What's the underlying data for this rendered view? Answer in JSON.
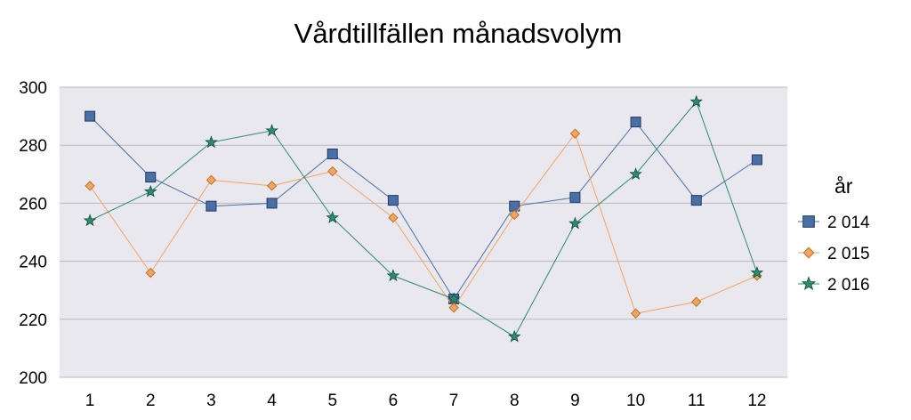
{
  "chart_data": {
    "type": "line",
    "title": "Vårdtillfällen månadsvolym",
    "xlabel": "",
    "ylabel": "",
    "categories": [
      "1",
      "2",
      "3",
      "4",
      "5",
      "6",
      "7",
      "8",
      "9",
      "10",
      "11",
      "12"
    ],
    "ylim": [
      200,
      300
    ],
    "yticks": [
      200,
      220,
      240,
      260,
      280,
      300
    ],
    "grid": true,
    "legend_title": "år",
    "legend_position": "right",
    "series": [
      {
        "name": "2 014",
        "marker": "square",
        "color": "#4A6FA5",
        "values": [
          290,
          269,
          259,
          260,
          277,
          261,
          227,
          259,
          262,
          288,
          261,
          275
        ]
      },
      {
        "name": "2 015",
        "marker": "diamond",
        "color": "#F4A460",
        "values": [
          266,
          236,
          268,
          266,
          271,
          255,
          224,
          256,
          284,
          222,
          226,
          235
        ]
      },
      {
        "name": "2 016",
        "marker": "star",
        "color": "#2E8B6E",
        "values": [
          254,
          264,
          281,
          285,
          255,
          235,
          227,
          214,
          253,
          270,
          295,
          236
        ]
      }
    ],
    "colors": {
      "plot_background": "#E8E8EE",
      "gridline": "#B8B8C0"
    }
  }
}
